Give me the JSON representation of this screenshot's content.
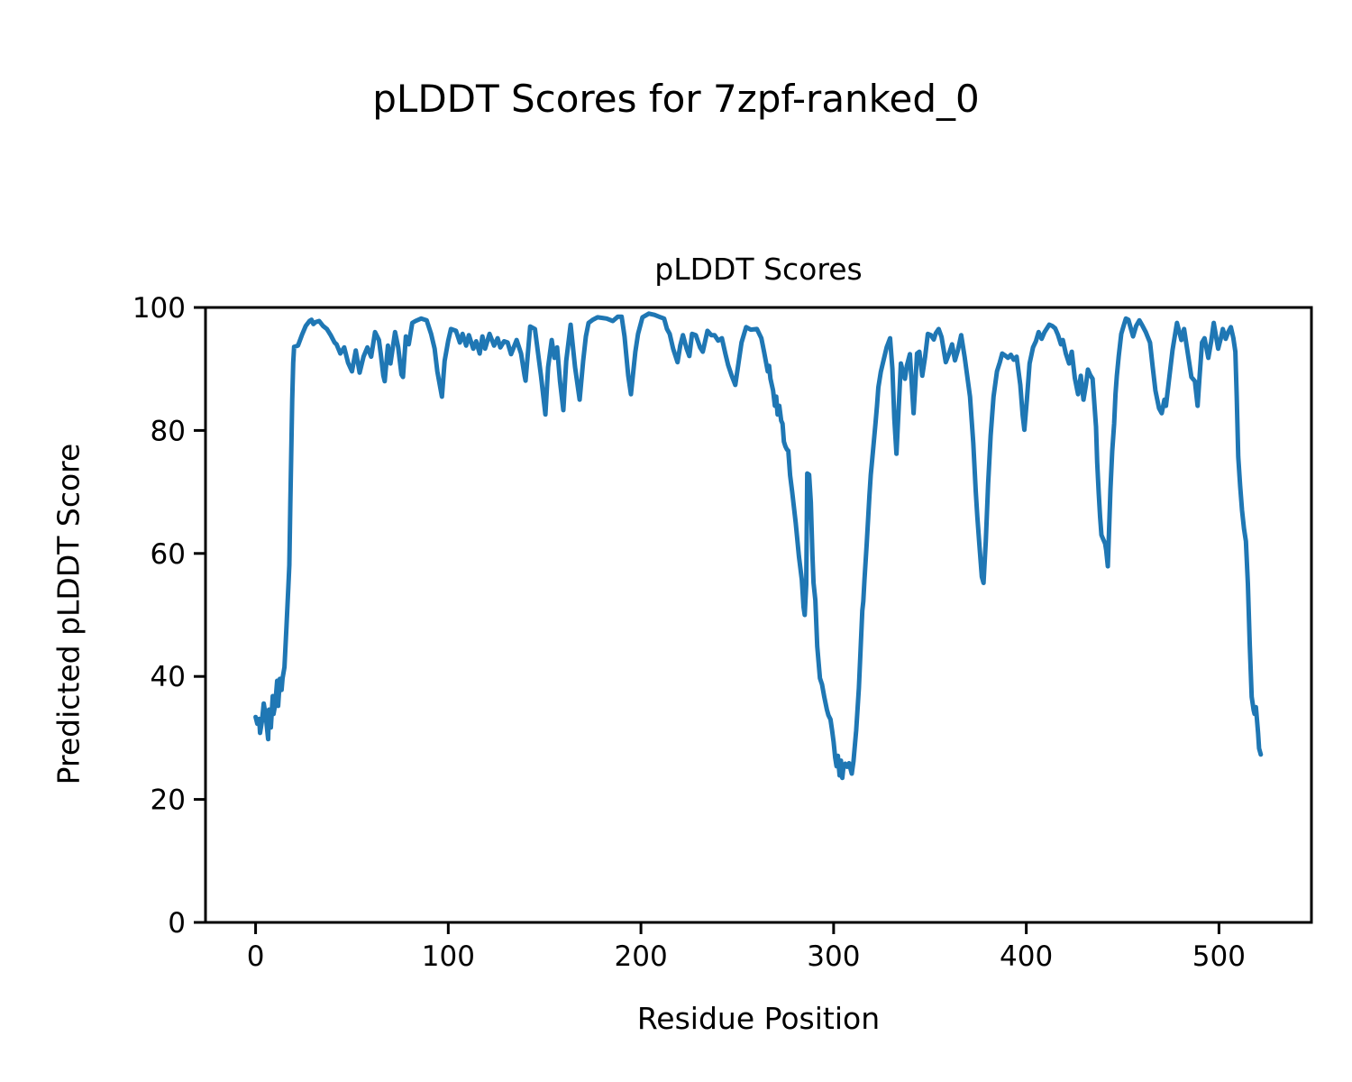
{
  "suptitle": "pLDDT Scores for 7zpf-ranked_0",
  "chart_data": {
    "type": "line",
    "title": "pLDDT Scores",
    "xlabel": "Residue Position",
    "ylabel": "Predicted pLDDT Score",
    "xlim": [
      -26,
      548
    ],
    "ylim": [
      0,
      100
    ],
    "xticks": [
      0,
      100,
      200,
      300,
      400,
      500
    ],
    "yticks": [
      0,
      20,
      40,
      60,
      80,
      100
    ],
    "grid": false,
    "legend": null,
    "line_color": "#1f77b4",
    "points": [
      [
        0,
        33.4
      ],
      [
        0.9,
        32.3
      ],
      [
        1.9,
        33.1
      ],
      [
        2.3,
        30.8
      ],
      [
        3.3,
        32.7
      ],
      [
        4.2,
        35.6
      ],
      [
        5.3,
        33.5
      ],
      [
        6.5,
        29.8
      ],
      [
        7,
        34.6
      ],
      [
        7.9,
        31.7
      ],
      [
        8.9,
        36.8
      ],
      [
        9.3,
        33.9
      ],
      [
        10.2,
        35.5
      ],
      [
        11.2,
        39.3
      ],
      [
        11.7,
        35.2
      ],
      [
        12.6,
        39.6
      ],
      [
        13.5,
        37.8
      ],
      [
        14,
        39.7
      ],
      [
        15,
        41.5
      ],
      [
        16,
        48
      ],
      [
        17,
        54.5
      ],
      [
        17.5,
        58.1
      ],
      [
        18,
        68
      ],
      [
        19,
        85
      ],
      [
        19.5,
        91
      ],
      [
        20,
        93.6
      ],
      [
        21,
        93.7
      ],
      [
        22,
        93.8
      ],
      [
        24,
        95.5
      ],
      [
        26,
        97
      ],
      [
        28,
        97.8
      ],
      [
        29,
        98
      ],
      [
        30,
        97.3
      ],
      [
        31,
        97.6
      ],
      [
        33,
        97.8
      ],
      [
        35,
        97
      ],
      [
        37,
        96.5
      ],
      [
        39,
        95.5
      ],
      [
        41,
        94.3
      ],
      [
        42,
        94
      ],
      [
        44,
        92.5
      ],
      [
        46,
        93.5
      ],
      [
        48,
        91
      ],
      [
        50,
        89.6
      ],
      [
        52,
        93
      ],
      [
        54,
        89.4
      ],
      [
        56,
        92
      ],
      [
        58,
        93.5
      ],
      [
        60,
        92
      ],
      [
        62,
        96
      ],
      [
        64,
        94.7
      ],
      [
        65,
        92.4
      ],
      [
        66.3,
        88.9
      ],
      [
        67,
        88
      ],
      [
        68.7,
        93.8
      ],
      [
        70,
        90.9
      ],
      [
        72.4,
        96
      ],
      [
        74,
        93.5
      ],
      [
        75.7,
        89.1
      ],
      [
        76.5,
        88.7
      ],
      [
        78,
        95.3
      ],
      [
        79.5,
        94
      ],
      [
        81.3,
        97.5
      ],
      [
        83,
        97.8
      ],
      [
        85.9,
        98.2
      ],
      [
        88.8,
        97.9
      ],
      [
        91.1,
        95.7
      ],
      [
        92.9,
        93.3
      ],
      [
        94.3,
        89.6
      ],
      [
        96.7,
        85.5
      ],
      [
        98.1,
        91.3
      ],
      [
        100,
        94.6
      ],
      [
        101.4,
        96.5
      ],
      [
        104,
        96.2
      ],
      [
        106,
        94.3
      ],
      [
        107.4,
        95.7
      ],
      [
        109.3,
        93.8
      ],
      [
        110.7,
        95.5
      ],
      [
        113,
        93.3
      ],
      [
        114.5,
        94.5
      ],
      [
        116.3,
        92.5
      ],
      [
        117.7,
        95.3
      ],
      [
        119.1,
        93.3
      ],
      [
        121.4,
        95.7
      ],
      [
        123.8,
        93.8
      ],
      [
        125.6,
        95
      ],
      [
        127,
        93.5
      ],
      [
        129,
        94.5
      ],
      [
        130.8,
        94.3
      ],
      [
        132.6,
        92.4
      ],
      [
        135.5,
        94.7
      ],
      [
        137.8,
        92.5
      ],
      [
        139.6,
        88.9
      ],
      [
        140.1,
        88.1
      ],
      [
        142.5,
        96.9
      ],
      [
        145,
        96.5
      ],
      [
        148.1,
        88.9
      ],
      [
        150.4,
        82.6
      ],
      [
        151.8,
        90.3
      ],
      [
        153.7,
        94.7
      ],
      [
        155.1,
        91.8
      ],
      [
        156.5,
        93.5
      ],
      [
        158,
        88
      ],
      [
        159.7,
        83.3
      ],
      [
        161.2,
        91.3
      ],
      [
        163.5,
        97.2
      ],
      [
        165.8,
        90.3
      ],
      [
        168.2,
        85
      ],
      [
        170,
        91.3
      ],
      [
        171.4,
        95.3
      ],
      [
        172.8,
        97.5
      ],
      [
        175,
        98
      ],
      [
        177.5,
        98.4
      ],
      [
        180,
        98.3
      ],
      [
        182.2,
        98.2
      ],
      [
        185.4,
        97.8
      ],
      [
        188,
        98.5
      ],
      [
        190,
        98.5
      ],
      [
        191.5,
        95.3
      ],
      [
        193.4,
        88.9
      ],
      [
        194.8,
        85.9
      ],
      [
        197.1,
        92.8
      ],
      [
        198.5,
        95.7
      ],
      [
        200.8,
        98.4
      ],
      [
        204.1,
        99
      ],
      [
        207,
        98.8
      ],
      [
        210.2,
        98.4
      ],
      [
        212,
        98.2
      ],
      [
        213.5,
        96.5
      ],
      [
        214.9,
        95.7
      ],
      [
        216.7,
        93.3
      ],
      [
        219,
        91.1
      ],
      [
        220.4,
        93.8
      ],
      [
        221.8,
        95.5
      ],
      [
        223.7,
        93.3
      ],
      [
        225.1,
        92.1
      ],
      [
        226.5,
        95.7
      ],
      [
        228.5,
        95.5
      ],
      [
        230.7,
        93.5
      ],
      [
        232.1,
        92.8
      ],
      [
        234.5,
        96.2
      ],
      [
        236.5,
        95.5
      ],
      [
        238.2,
        95.5
      ],
      [
        240.1,
        94.6
      ],
      [
        242,
        95
      ],
      [
        243.9,
        92.4
      ],
      [
        245.3,
        90.6
      ],
      [
        247.1,
        88.9
      ],
      [
        249,
        87.4
      ],
      [
        250.8,
        91.3
      ],
      [
        252.2,
        94.3
      ],
      [
        254.6,
        96.8
      ],
      [
        257,
        96.4
      ],
      [
        260.2,
        96.5
      ],
      [
        262.5,
        95
      ],
      [
        263.9,
        92.8
      ],
      [
        265.8,
        89.6
      ],
      [
        266.5,
        90.5
      ],
      [
        267.2,
        88.4
      ],
      [
        268.6,
        86.5
      ],
      [
        269.5,
        84
      ],
      [
        270.2,
        85.5
      ],
      [
        270.9,
        82.6
      ],
      [
        271.8,
        84
      ],
      [
        272.8,
        81.6
      ],
      [
        273.5,
        81.1
      ],
      [
        274.2,
        78.2
      ],
      [
        275,
        77.4
      ],
      [
        275.8,
        76.9
      ],
      [
        276.5,
        76.7
      ],
      [
        277.4,
        72.7
      ],
      [
        278.5,
        70
      ],
      [
        280.3,
        65
      ],
      [
        282,
        59.5
      ],
      [
        283.5,
        55.7
      ],
      [
        284.4,
        51.3
      ],
      [
        285,
        50
      ],
      [
        285.8,
        55
      ],
      [
        286.3,
        73
      ],
      [
        287.3,
        72.8
      ],
      [
        288.2,
        68.3
      ],
      [
        289,
        59.6
      ],
      [
        289.6,
        55.2
      ],
      [
        290.5,
        52.4
      ],
      [
        291.5,
        44.9
      ],
      [
        292.9,
        39.7
      ],
      [
        294,
        38.7
      ],
      [
        295.2,
        36.6
      ],
      [
        296.5,
        34.6
      ],
      [
        297.3,
        33.7
      ],
      [
        298.4,
        33
      ],
      [
        299.2,
        31.2
      ],
      [
        300,
        29.3
      ],
      [
        300.8,
        26.8
      ],
      [
        301.5,
        25.4
      ],
      [
        302.2,
        27.1
      ],
      [
        303.1,
        23.9
      ],
      [
        303.8,
        26.3
      ],
      [
        304.5,
        23.5
      ],
      [
        305.2,
        25.6
      ],
      [
        306,
        25.8
      ],
      [
        307,
        25.3
      ],
      [
        308,
        25.9
      ],
      [
        309.4,
        24.2
      ],
      [
        310.3,
        26.2
      ],
      [
        311.7,
        31.2
      ],
      [
        313.1,
        38.1
      ],
      [
        314,
        44.4
      ],
      [
        314.9,
        50.7
      ],
      [
        315.4,
        52.2
      ],
      [
        316,
        55.7
      ],
      [
        317.2,
        61.6
      ],
      [
        318,
        66
      ],
      [
        318.6,
        69.4
      ],
      [
        319.3,
        72.8
      ],
      [
        319.8,
        74.5
      ],
      [
        320.9,
        78.2
      ],
      [
        321.7,
        81.1
      ],
      [
        322.5,
        84
      ],
      [
        323.2,
        87
      ],
      [
        324.5,
        89.5
      ],
      [
        326,
        91.5
      ],
      [
        327.5,
        93.5
      ],
      [
        329.3,
        95
      ],
      [
        330.5,
        90
      ],
      [
        331.5,
        82
      ],
      [
        332.6,
        76.2
      ],
      [
        333.5,
        82
      ],
      [
        334.9,
        90.9
      ],
      [
        336,
        89.5
      ],
      [
        337,
        88.4
      ],
      [
        338,
        90.5
      ],
      [
        339.6,
        92.4
      ],
      [
        340.5,
        88
      ],
      [
        341.5,
        82.8
      ],
      [
        342.3,
        87
      ],
      [
        343.3,
        92.5
      ],
      [
        344.5,
        92.8
      ],
      [
        346,
        88.9
      ],
      [
        347.5,
        92
      ],
      [
        348.9,
        95.7
      ],
      [
        350.5,
        95.5
      ],
      [
        352,
        94.8
      ],
      [
        353,
        95.8
      ],
      [
        354.5,
        96.5
      ],
      [
        356,
        95.2
      ],
      [
        358.2,
        91.1
      ],
      [
        359.8,
        92.4
      ],
      [
        361.5,
        94
      ],
      [
        363,
        91.4
      ],
      [
        364.5,
        93
      ],
      [
        366.2,
        95.5
      ],
      [
        368,
        92
      ],
      [
        370.8,
        85.5
      ],
      [
        372.5,
        78
      ],
      [
        373.8,
        70
      ],
      [
        374.6,
        66
      ],
      [
        375.6,
        61.6
      ],
      [
        376.9,
        56.2
      ],
      [
        377.8,
        55.2
      ],
      [
        379,
        62
      ],
      [
        380.2,
        71.3
      ],
      [
        381.5,
        79.2
      ],
      [
        383,
        85.5
      ],
      [
        384.8,
        89.6
      ],
      [
        386.3,
        91.1
      ],
      [
        387.5,
        92.5
      ],
      [
        389,
        92.2
      ],
      [
        390.5,
        91.8
      ],
      [
        392,
        92.3
      ],
      [
        393.5,
        91.5
      ],
      [
        395,
        92
      ],
      [
        396.9,
        87.4
      ],
      [
        398.1,
        82.5
      ],
      [
        399,
        80.1
      ],
      [
        400.3,
        85
      ],
      [
        401.7,
        90.9
      ],
      [
        403.5,
        93.5
      ],
      [
        405,
        94.5
      ],
      [
        406.4,
        96
      ],
      [
        408,
        94.9
      ],
      [
        409.5,
        96
      ],
      [
        411.9,
        97.2
      ],
      [
        413.5,
        97
      ],
      [
        415,
        96.6
      ],
      [
        416.5,
        95.5
      ],
      [
        418,
        94
      ],
      [
        419,
        94.7
      ],
      [
        420.5,
        92.5
      ],
      [
        422.2,
        90.9
      ],
      [
        423.6,
        92.8
      ],
      [
        425.2,
        88.5
      ],
      [
        426.9,
        85.9
      ],
      [
        428.3,
        88.9
      ],
      [
        429.7,
        85
      ],
      [
        431,
        87.5
      ],
      [
        432,
        89.9
      ],
      [
        433.2,
        89
      ],
      [
        434.4,
        88.4
      ],
      [
        436.2,
        80.6
      ],
      [
        436.8,
        74.8
      ],
      [
        437.6,
        69.8
      ],
      [
        438.3,
        66
      ],
      [
        439,
        63
      ],
      [
        439.8,
        62.4
      ],
      [
        440.9,
        61.6
      ],
      [
        441.5,
        60.5
      ],
      [
        442.3,
        57.9
      ],
      [
        443.7,
        70.4
      ],
      [
        444.6,
        76.7
      ],
      [
        445.6,
        81.1
      ],
      [
        446.3,
        85.9
      ],
      [
        447,
        88.9
      ],
      [
        448,
        92.1
      ],
      [
        449.3,
        95.7
      ],
      [
        450.5,
        97
      ],
      [
        451.7,
        98.2
      ],
      [
        453,
        98
      ],
      [
        455.4,
        95.3
      ],
      [
        457,
        97
      ],
      [
        458.7,
        97.9
      ],
      [
        460,
        97.2
      ],
      [
        462,
        96
      ],
      [
        464.2,
        94.3
      ],
      [
        465.6,
        90.3
      ],
      [
        467,
        86.5
      ],
      [
        468.9,
        83.6
      ],
      [
        470.3,
        82.8
      ],
      [
        471.7,
        85
      ],
      [
        472.5,
        84
      ],
      [
        474,
        88
      ],
      [
        475.9,
        93.1
      ],
      [
        478.2,
        97.5
      ],
      [
        480.5,
        94.7
      ],
      [
        481.9,
        96.5
      ],
      [
        484.3,
        91.6
      ],
      [
        485.7,
        88.7
      ],
      [
        487.5,
        88
      ],
      [
        488.9,
        84
      ],
      [
        490,
        89
      ],
      [
        491.2,
        94.3
      ],
      [
        492.5,
        95
      ],
      [
        494.5,
        91.8
      ],
      [
        496,
        94.5
      ],
      [
        497.3,
        97.5
      ],
      [
        499.6,
        93.3
      ],
      [
        501,
        95
      ],
      [
        502,
        96.5
      ],
      [
        503.5,
        94.9
      ],
      [
        504.8,
        96
      ],
      [
        506.2,
        96.8
      ],
      [
        507.5,
        95
      ],
      [
        508.5,
        92.8
      ],
      [
        509.2,
        85.5
      ],
      [
        510,
        75.7
      ],
      [
        511,
        71
      ],
      [
        512,
        67
      ],
      [
        513,
        64
      ],
      [
        514,
        62
      ],
      [
        515,
        55
      ],
      [
        516,
        45
      ],
      [
        517,
        36.7
      ],
      [
        518,
        34.5
      ],
      [
        518.5,
        33.9
      ],
      [
        519.2,
        35
      ],
      [
        520.3,
        30.8
      ],
      [
        520.8,
        28.3
      ],
      [
        521.7,
        27.3
      ]
    ]
  }
}
